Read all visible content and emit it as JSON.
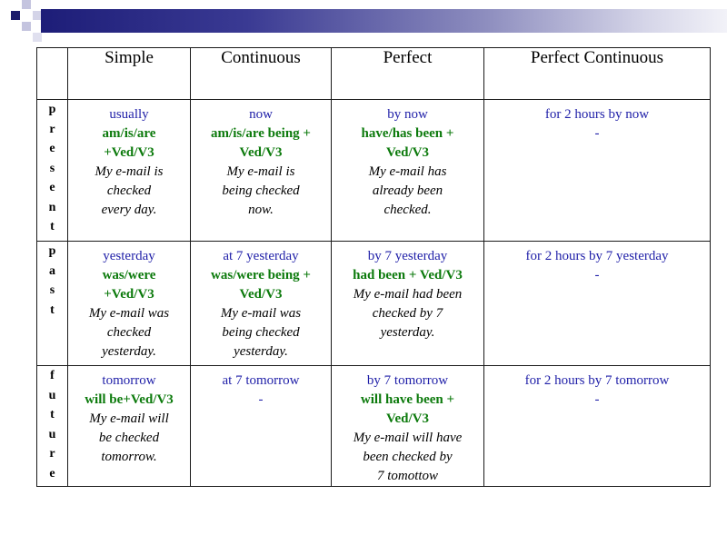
{
  "slide": {
    "accent_colors": {
      "dark": "#1d1d78",
      "square": "#1c1c6b",
      "light": "#b6b6d6",
      "tense_word": "#1f1fa8",
      "formula": "#0c7a0c"
    }
  },
  "table": {
    "headers": [
      "",
      "Simple",
      "Continuous",
      "Perfect",
      "Perfect Continuous"
    ],
    "rows": [
      {
        "side_letters": [
          "p",
          "r",
          "e",
          "s",
          "e",
          "n",
          "t"
        ],
        "cells": [
          {
            "marker": "usually",
            "formula": [
              "am/is/are",
              "+Ved/V3"
            ],
            "example": [
              "My e-mail is",
              "checked",
              "every day."
            ]
          },
          {
            "marker": "now",
            "formula": [
              "am/is/are being +",
              "Ved/V3"
            ],
            "example": [
              "My e-mail is",
              "being checked",
              "now."
            ]
          },
          {
            "marker": "by now",
            "formula": [
              "have/has been +",
              "Ved/V3"
            ],
            "example": [
              "My e-mail has",
              "already been",
              "checked."
            ]
          },
          {
            "marker": "for 2 hours by now",
            "dash": "-"
          }
        ]
      },
      {
        "side_letters": [
          "p",
          "a",
          "s",
          "t"
        ],
        "cells": [
          {
            "marker": "yesterday",
            "formula": [
              "was/were",
              "+Ved/V3"
            ],
            "example": [
              "My e-mail was",
              "checked",
              "yesterday."
            ]
          },
          {
            "marker": "at 7 yesterday",
            "formula": [
              "was/were being +",
              "Ved/V3"
            ],
            "example": [
              "My e-mail was",
              "being checked",
              "yesterday."
            ]
          },
          {
            "marker": "by 7 yesterday",
            "formula": [
              "had been + Ved/V3"
            ],
            "example": [
              "My e-mail had been",
              "checked by 7",
              "yesterday."
            ]
          },
          {
            "marker": "for 2 hours by 7 yesterday",
            "dash": "-"
          }
        ]
      },
      {
        "side_letters": [
          "f",
          "u",
          "t",
          "u",
          "r",
          "e"
        ],
        "cells": [
          {
            "marker": "tomorrow",
            "formula": [
              "will be+Ved/V3"
            ],
            "example": [
              "My e-mail will",
              "be checked",
              "tomorrow."
            ]
          },
          {
            "marker": "at 7 tomorrow",
            "dash": "-"
          },
          {
            "marker": "by 7 tomorrow",
            "formula": [
              "will have been +",
              "Ved/V3"
            ],
            "example": [
              "My e-mail will have",
              "been checked by",
              "7 tomottow"
            ]
          },
          {
            "marker": "for 2 hours by 7 tomorrow",
            "dash": "-"
          }
        ]
      }
    ]
  }
}
